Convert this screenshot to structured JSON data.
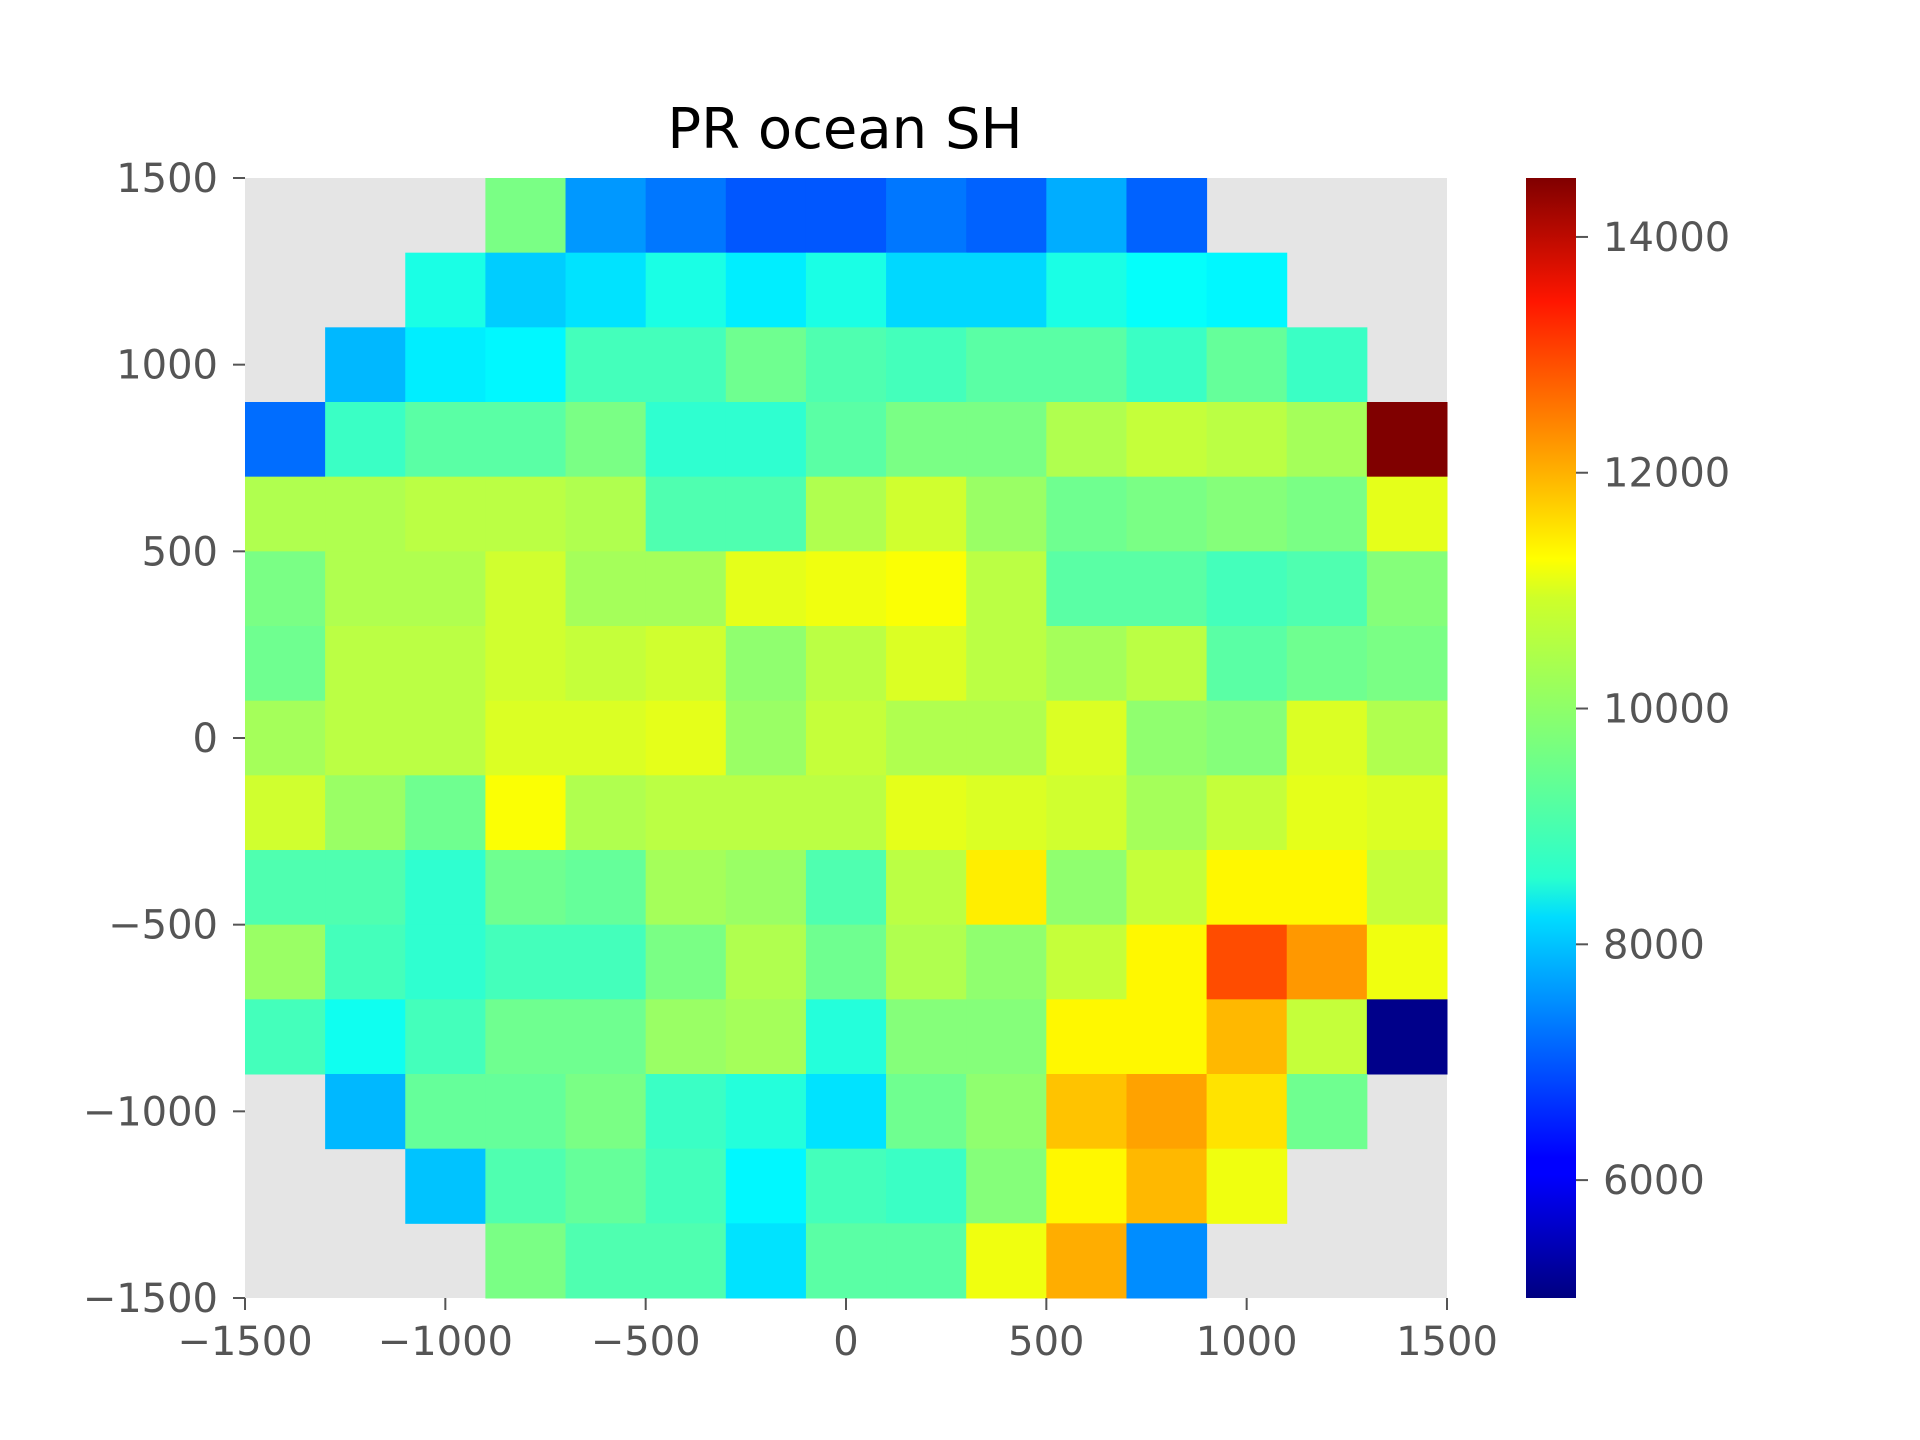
{
  "chart_data": {
    "type": "heatmap",
    "title": "PR ocean SH",
    "xlabel": "",
    "ylabel": "",
    "xlim": [
      -1500,
      1500
    ],
    "ylim": [
      -1500,
      1500
    ],
    "x_ticks": [
      "−1500",
      "−1000",
      "−500",
      "0",
      "500",
      "1000",
      "1500"
    ],
    "y_ticks": [
      "1500",
      "1000",
      "500",
      "0",
      "−500",
      "−1000",
      "−1500"
    ],
    "x_tick_values": [
      -1500,
      -1000,
      -500,
      0,
      500,
      1000,
      1500
    ],
    "y_tick_values": [
      1500,
      1000,
      500,
      0,
      -500,
      -1000,
      -1500
    ],
    "colormap": "jet",
    "missing_color": "#e5e5e5",
    "color_range": [
      5000,
      14500
    ],
    "colorbar_ticks": [
      "6000",
      "8000",
      "10000",
      "12000",
      "14000"
    ],
    "colorbar_tick_values": [
      6000,
      8000,
      10000,
      12000,
      14000
    ],
    "grid": false,
    "x_bin_edges": [
      -1500,
      -1300,
      -1100,
      -900,
      -700,
      -500,
      -300,
      -100,
      100,
      300,
      500,
      700,
      900,
      1100,
      1300,
      1500
    ],
    "y_bin_edges": [
      1500,
      1300,
      1100,
      900,
      700,
      500,
      300,
      100,
      -100,
      -300,
      -500,
      -700,
      -900,
      -1100,
      -1300,
      -1500
    ],
    "values": [
      [
        null,
        null,
        null,
        9700,
        7600,
        7300,
        7000,
        7000,
        7300,
        7100,
        7800,
        7100,
        null,
        null,
        null
      ],
      [
        null,
        null,
        8800,
        8100,
        8300,
        8800,
        8400,
        8800,
        8200,
        8200,
        8800,
        8600,
        8500,
        null,
        null
      ],
      [
        null,
        7900,
        8400,
        8500,
        9200,
        9200,
        9600,
        9300,
        9200,
        9400,
        9400,
        9100,
        9500,
        9100,
        null
      ],
      [
        7200,
        9100,
        9400,
        9400,
        9700,
        9000,
        9000,
        9400,
        9700,
        9700,
        10200,
        10400,
        10300,
        10100,
        14500
      ],
      [
        10200,
        10200,
        10300,
        10300,
        10200,
        9300,
        9300,
        10200,
        10500,
        10000,
        9600,
        9700,
        9800,
        9700,
        10700
      ],
      [
        9700,
        10200,
        10200,
        10500,
        10100,
        10100,
        10700,
        10800,
        10900,
        10300,
        9400,
        9400,
        9200,
        9300,
        9800
      ],
      [
        9600,
        10300,
        10300,
        10500,
        10400,
        10500,
        9900,
        10300,
        10600,
        10300,
        10100,
        10300,
        9400,
        9600,
        9700
      ],
      [
        10100,
        10300,
        10300,
        10600,
        10600,
        10700,
        10000,
        10400,
        10200,
        10200,
        10600,
        9900,
        9800,
        10600,
        10200
      ],
      [
        10500,
        10000,
        9600,
        10900,
        10200,
        10300,
        10300,
        10300,
        10700,
        10600,
        10500,
        10100,
        10400,
        10700,
        10600
      ],
      [
        9300,
        9300,
        9000,
        9600,
        9500,
        10100,
        10000,
        9300,
        10300,
        11100,
        9900,
        10400,
        11000,
        11000,
        10400
      ],
      [
        10000,
        9200,
        9000,
        9200,
        9200,
        9700,
        10200,
        9600,
        10200,
        9900,
        10400,
        11000,
        12600,
        11900,
        10800
      ],
      [
        9200,
        8700,
        9200,
        9600,
        9600,
        10000,
        10100,
        8900,
        9800,
        9800,
        11000,
        11000,
        11600,
        10400,
        5100
      ],
      [
        null,
        7900,
        9500,
        9500,
        9700,
        9100,
        8900,
        8300,
        9600,
        9900,
        11500,
        11800,
        11200,
        9600,
        null
      ],
      [
        null,
        null,
        8000,
        9300,
        9500,
        9200,
        8500,
        9200,
        9100,
        9800,
        11000,
        11600,
        10800,
        null,
        null
      ],
      [
        null,
        null,
        null,
        9700,
        9300,
        9300,
        8300,
        9400,
        9400,
        10800,
        11700,
        7500,
        null,
        null,
        null
      ]
    ]
  }
}
